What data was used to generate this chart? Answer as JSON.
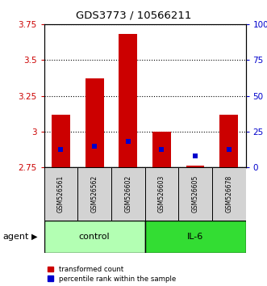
{
  "title": "GDS3773 / 10566211",
  "samples": [
    "GSM526561",
    "GSM526562",
    "GSM526602",
    "GSM526603",
    "GSM526605",
    "GSM526678"
  ],
  "bar_bottoms": [
    2.75,
    2.75,
    2.75,
    2.75,
    2.75,
    2.75
  ],
  "bar_tops": [
    3.12,
    3.37,
    3.68,
    3.0,
    2.76,
    3.12
  ],
  "blue_values": [
    2.875,
    2.895,
    2.93,
    2.875,
    2.83,
    2.875
  ],
  "ylim_left": [
    2.75,
    3.75
  ],
  "ylim_right": [
    0,
    100
  ],
  "yticks_left": [
    2.75,
    3.0,
    3.25,
    3.5,
    3.75
  ],
  "yticks_right": [
    0,
    25,
    50,
    75,
    100
  ],
  "ytick_labels_left": [
    "2.75",
    "3",
    "3.25",
    "3.5",
    "3.75"
  ],
  "ytick_labels_right": [
    "0",
    "25",
    "50",
    "75",
    "100%"
  ],
  "bar_color": "#cc0000",
  "blue_color": "#0000cc",
  "group1_label": "control",
  "group2_label": "IL-6",
  "group1_indices": [
    0,
    1,
    2
  ],
  "group2_indices": [
    3,
    4,
    5
  ],
  "group1_bg": "#b3ffb3",
  "group2_bg": "#33dd33",
  "sample_bg": "#d3d3d3",
  "agent_label": "agent",
  "legend_red_label": "transformed count",
  "legend_blue_label": "percentile rank within the sample",
  "bar_width": 0.55,
  "fig_width": 3.31,
  "fig_height": 3.54
}
